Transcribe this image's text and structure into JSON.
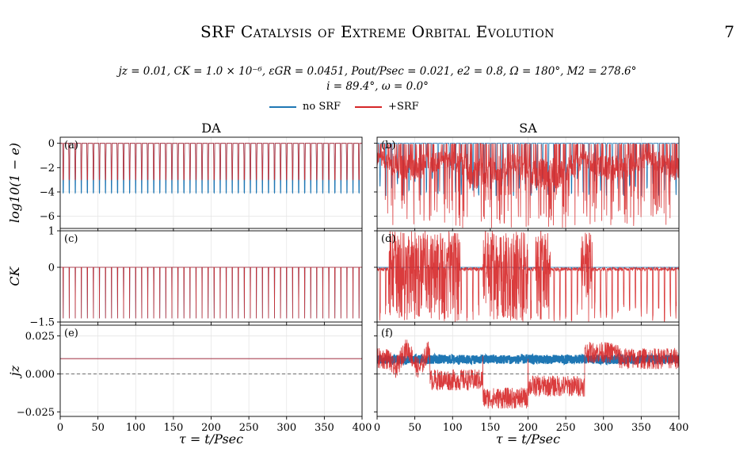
{
  "header": {
    "title": "SRF Catalysis of Extreme Orbital Evolution",
    "page_number": "7"
  },
  "params": {
    "line1": "jz = 0.01,   CK = 1.0 × 10⁻⁶,   εGR = 0.0451,   Pout/Psec = 0.021,   e2 = 0.8,   Ω = 180°,   M2 = 278.6°",
    "line2": "i = 89.4°,   ω = 0.0°"
  },
  "colors": {
    "no_srf": "#1f77b4",
    "srf": "#d62728"
  },
  "chart_data": {
    "type": "line",
    "legend": {
      "placement": "top-center",
      "entries": [
        "no SRF",
        "+SRF"
      ]
    },
    "columns": [
      "DA",
      "SA"
    ],
    "xlabel": "τ = t/Psec",
    "xlim": [
      0,
      400
    ],
    "xticks": [
      "0",
      "50",
      "100",
      "150",
      "200",
      "250",
      "300",
      "350",
      "400"
    ],
    "rows": [
      {
        "ylabel": "log10(1 − e)",
        "ylim": [
          -7,
          0.5
        ],
        "yticks": [
          {
            "v": 0,
            "t": "0"
          },
          {
            "v": -2,
            "t": "−2"
          },
          {
            "v": -4,
            "t": "−4"
          },
          {
            "v": -6,
            "t": "−6"
          }
        ],
        "panels": [
          "(a)",
          "(b)"
        ]
      },
      {
        "ylabel": "CK",
        "ylim": [
          -1.5,
          1
        ],
        "yticks": [
          {
            "v": 1,
            "t": "1"
          },
          {
            "v": 0,
            "t": "0"
          },
          {
            "v": -1.5,
            "t": "−1.5"
          }
        ],
        "panels": [
          "(c)",
          "(d)"
        ]
      },
      {
        "ylabel": "jz",
        "ylim": [
          -0.028,
          0.032
        ],
        "yticks": [
          {
            "v": 0.025,
            "t": "0.025"
          },
          {
            "v": 0,
            "t": "0.000"
          },
          {
            "v": -0.025,
            "t": "−0.025"
          }
        ],
        "panels": [
          "(e)",
          "(f)"
        ]
      }
    ],
    "series_summary": {
      "DA": {
        "oscillation_count": 50,
        "no_srf": {
          "log_min": -4.1,
          "log_max": 0,
          "CK_min": -1.4,
          "CK_max": 0,
          "jz": 0.01
        },
        "srf": {
          "log_min": -3.0,
          "log_max": 0,
          "CK_min": -1.4,
          "CK_max": 0,
          "jz": 0.01
        }
      },
      "SA": {
        "oscillation_count": 52,
        "no_srf": {
          "log_min": -4.3,
          "log_max": 0,
          "CK_min": -0.1,
          "CK_max": 0,
          "jz_min": 0.006,
          "jz_max": 0.013
        },
        "srf": {
          "log_min": -7.0,
          "log_max": 0,
          "CK_min": -1.5,
          "CK_max": 1,
          "jz_min": -0.026,
          "jz_max": 0.025
        }
      }
    },
    "reference_line": {
      "y": 0,
      "style": "dashed",
      "rows": [
        2
      ]
    }
  }
}
